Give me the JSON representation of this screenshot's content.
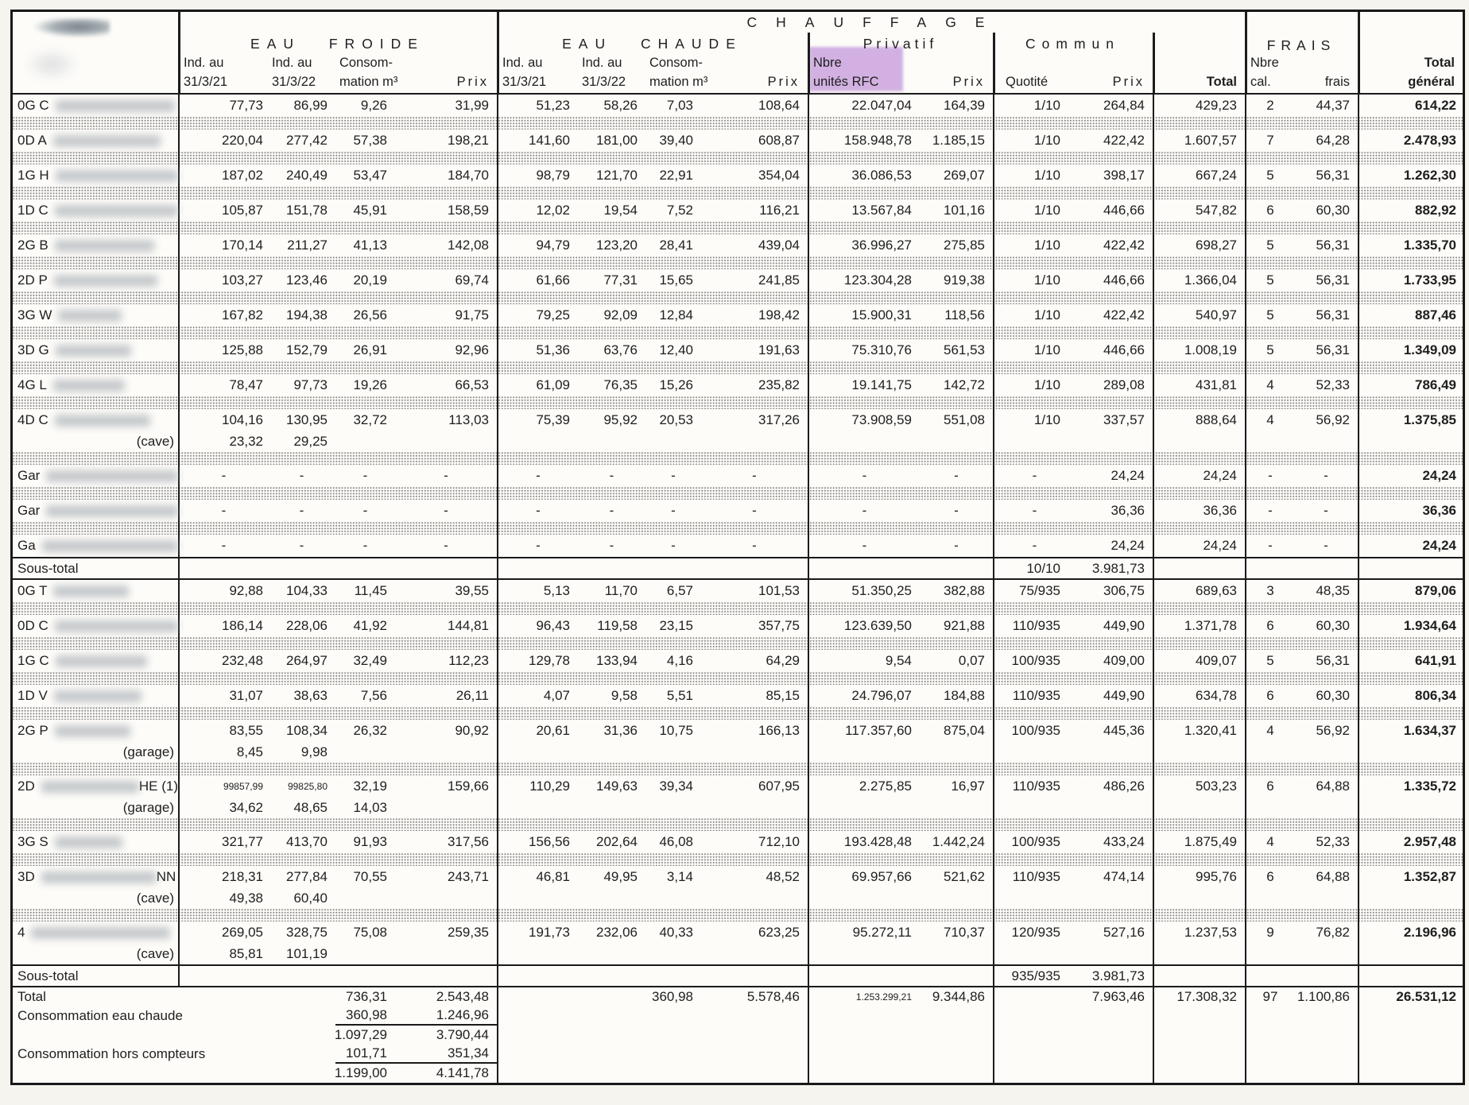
{
  "colors": {
    "highlight": "#d2b1e2",
    "paper": "#f6f4ef",
    "ink": "#1e1e1e"
  },
  "table": {
    "col_ids": [
      "name",
      "ef-ind-21",
      "ef-ind-22",
      "ef-conso",
      "ef-prix",
      "ec-ind-21",
      "ec-ind-22",
      "ec-conso",
      "ec-prix",
      "ch-nbre-unites-rfc",
      "ch-prix-privatif",
      "ch-quotite",
      "ch-prix-commun",
      "total",
      "frais-nbre-cal",
      "frais-montant",
      "total-general"
    ],
    "header": {
      "titles": {
        "chauffage": "CHAUFFAGE",
        "eau_froide": "EAU FROIDE",
        "eau_chaude": "EAU CHAUDE",
        "privatif": "Privatif",
        "commun": "Commun",
        "frais": "FRAIS"
      },
      "cols": [
        {},
        {
          "l1": "Ind. au",
          "l2": "31/3/21"
        },
        {
          "l1": "Ind. au",
          "l2": "31/3/22"
        },
        {
          "l1": "Consom-",
          "l2": "mation m³"
        },
        {
          "l2": "Prix",
          "align": "right",
          "sp": true
        },
        {
          "l1": "Ind. au",
          "l2": "31/3/21"
        },
        {
          "l1": "Ind. au",
          "l2": "31/3/22"
        },
        {
          "l1": "Consom-",
          "l2": "mation m³"
        },
        {
          "l2": "Prix",
          "align": "right",
          "sp": true
        },
        {
          "l1": "Nbre",
          "l2": "unités RFC"
        },
        {
          "l2": "Prix",
          "align": "right",
          "sp": true
        },
        {
          "l2": "Quotité"
        },
        {
          "l2": "Prix",
          "align": "right",
          "sp": true
        },
        {
          "l2": "Total",
          "align": "right",
          "bold": true
        },
        {
          "l1": "Nbre",
          "l2": "cal."
        },
        {
          "l2": "frais",
          "align": "right"
        },
        {
          "l1": "Total",
          "l2": "général",
          "align": "right",
          "bold": true
        }
      ]
    },
    "body": [
      {
        "t": "d",
        "label": "0G C",
        "blur": 150,
        "v": [
          "77,73",
          "86,99",
          "9,26",
          "31,99",
          "51,23",
          "58,26",
          "7,03",
          "108,64",
          "22.047,04",
          "164,39",
          "1/10",
          "264,84",
          "429,23",
          "2",
          "44,37",
          "614,22"
        ]
      },
      {
        "t": "d",
        "label": "0D A",
        "blur": 135,
        "v": [
          "220,04",
          "277,42",
          "57,38",
          "198,21",
          "141,60",
          "181,00",
          "39,40",
          "608,87",
          "158.948,78",
          "1.185,15",
          "1/10",
          "422,42",
          "1.607,57",
          "7",
          "64,28",
          "2.478,93"
        ]
      },
      {
        "t": "d",
        "label": "1G H",
        "blur": 185,
        "v": [
          "187,02",
          "240,49",
          "53,47",
          "184,70",
          "98,79",
          "121,70",
          "22,91",
          "354,04",
          "36.086,53",
          "269,07",
          "1/10",
          "398,17",
          "667,24",
          "5",
          "56,31",
          "1.262,30"
        ]
      },
      {
        "t": "d",
        "label": "1D C",
        "blur": 165,
        "v": [
          "105,87",
          "151,78",
          "45,91",
          "158,59",
          "12,02",
          "19,54",
          "7,52",
          "116,21",
          "13.567,84",
          "101,16",
          "1/10",
          "446,66",
          "547,82",
          "6",
          "60,30",
          "882,92"
        ]
      },
      {
        "t": "d",
        "label": "2G B",
        "blur": 125,
        "v": [
          "170,14",
          "211,27",
          "41,13",
          "142,08",
          "94,79",
          "123,20",
          "28,41",
          "439,04",
          "36.996,27",
          "275,85",
          "1/10",
          "422,42",
          "698,27",
          "5",
          "56,31",
          "1.335,70"
        ]
      },
      {
        "t": "d",
        "label": "2D P",
        "blur": 130,
        "v": [
          "103,27",
          "123,46",
          "20,19",
          "69,74",
          "61,66",
          "77,31",
          "15,65",
          "241,85",
          "123.304,28",
          "919,38",
          "1/10",
          "446,66",
          "1.366,04",
          "5",
          "56,31",
          "1.733,95"
        ]
      },
      {
        "t": "d",
        "label": "3G W",
        "blur": 80,
        "v": [
          "167,82",
          "194,38",
          "26,56",
          "91,75",
          "79,25",
          "92,09",
          "12,84",
          "198,42",
          "15.900,31",
          "118,56",
          "1/10",
          "422,42",
          "540,97",
          "5",
          "56,31",
          "887,46"
        ]
      },
      {
        "t": "d",
        "label": "3D G",
        "blur": 95,
        "v": [
          "125,88",
          "152,79",
          "26,91",
          "92,96",
          "51,36",
          "63,76",
          "12,40",
          "191,63",
          "75.310,76",
          "561,53",
          "1/10",
          "446,66",
          "1.008,19",
          "5",
          "56,31",
          "1.349,09"
        ]
      },
      {
        "t": "d",
        "label": "4G L",
        "blur": 90,
        "v": [
          "78,47",
          "97,73",
          "19,26",
          "66,53",
          "61,09",
          "76,35",
          "15,26",
          "235,82",
          "19.141,75",
          "142,72",
          "1/10",
          "289,08",
          "431,81",
          "4",
          "52,33",
          "786,49"
        ]
      },
      {
        "t": "d",
        "label": "4D C",
        "blur": 120,
        "sub": {
          "label": "(cave)",
          "v": [
            "23,32",
            "29,25",
            ""
          ]
        },
        "v": [
          "104,16",
          "130,95",
          "32,72",
          "113,03",
          "75,39",
          "95,92",
          "20,53",
          "317,26",
          "73.908,59",
          "551,08",
          "1/10",
          "337,57",
          "888,64",
          "4",
          "56,92",
          "1.375,85"
        ]
      },
      {
        "t": "d",
        "label": "Gar",
        "blur": 170,
        "v": [
          "-",
          "-",
          "-",
          "-",
          "-",
          "-",
          "-",
          "-",
          "-",
          "-",
          "-",
          "24,24",
          "24,24",
          "-",
          "-",
          "24,24"
        ]
      },
      {
        "t": "d",
        "label": "Gar",
        "blur": 185,
        "v": [
          "-",
          "-",
          "-",
          "-",
          "-",
          "-",
          "-",
          "-",
          "-",
          "-",
          "-",
          "36,36",
          "36,36",
          "-",
          "-",
          "36,36"
        ]
      },
      {
        "t": "d",
        "label": "Ga",
        "blur": 175,
        "v": [
          "-",
          "-",
          "-",
          "-",
          "-",
          "-",
          "-",
          "-",
          "-",
          "-",
          "-",
          "24,24",
          "24,24",
          "-",
          "-",
          "24,24"
        ]
      },
      {
        "t": "st",
        "label": "Sous-total",
        "v": [
          "",
          "",
          "",
          "",
          "",
          "",
          "",
          "",
          "",
          "",
          "10/10",
          "3.981,73",
          "",
          "",
          "",
          ""
        ]
      },
      {
        "t": "d",
        "label": "0G T",
        "blur": 95,
        "v": [
          "92,88",
          "104,33",
          "11,45",
          "39,55",
          "5,13",
          "11,70",
          "6,57",
          "101,53",
          "51.350,25",
          "382,88",
          "75/935",
          "306,75",
          "689,63",
          "3",
          "48,35",
          "879,06"
        ]
      },
      {
        "t": "d",
        "label": "0D C",
        "blur": 215,
        "v": [
          "186,14",
          "228,06",
          "41,92",
          "144,81",
          "96,43",
          "119,58",
          "23,15",
          "357,75",
          "123.639,50",
          "921,88",
          "110/935",
          "449,90",
          "1.371,78",
          "6",
          "60,30",
          "1.934,64"
        ]
      },
      {
        "t": "d",
        "label": "1G C",
        "blur": 115,
        "v": [
          "232,48",
          "264,97",
          "32,49",
          "112,23",
          "129,78",
          "133,94",
          "4,16",
          "64,29",
          "9,54",
          "0,07",
          "100/935",
          "409,00",
          "409,07",
          "5",
          "56,31",
          "641,91"
        ]
      },
      {
        "t": "d",
        "label": "1D V",
        "blur": 110,
        "v": [
          "31,07",
          "38,63",
          "7,56",
          "26,11",
          "4,07",
          "9,58",
          "5,51",
          "85,15",
          "24.796,07",
          "184,88",
          "110/935",
          "449,90",
          "634,78",
          "6",
          "60,30",
          "806,34"
        ]
      },
      {
        "t": "d",
        "label": "2G P",
        "blur": 95,
        "sub": {
          "label": "(garage)",
          "v": [
            "8,45",
            "9,98",
            ""
          ]
        },
        "v": [
          "83,55",
          "108,34",
          "26,32",
          "90,92",
          "20,61",
          "31,36",
          "10,75",
          "166,13",
          "117.357,60",
          "875,04",
          "100/935",
          "445,36",
          "1.320,41",
          "4",
          "56,92",
          "1.634,37"
        ]
      },
      {
        "t": "d",
        "label": "2D",
        "blur": 150,
        "suffix": "HE (1)",
        "sm": [
          0,
          1
        ],
        "sub": {
          "label": "(garage)",
          "v": [
            "34,62",
            "48,65",
            "14,03"
          ]
        },
        "v": [
          "99857,99",
          "99825,80",
          "32,19",
          "159,66",
          "110,29",
          "149,63",
          "39,34",
          "607,95",
          "2.275,85",
          "16,97",
          "110/935",
          "486,26",
          "503,23",
          "6",
          "64,88",
          "1.335,72"
        ]
      },
      {
        "t": "d",
        "label": "3G S",
        "blur": 85,
        "v": [
          "321,77",
          "413,70",
          "91,93",
          "317,56",
          "156,56",
          "202,64",
          "46,08",
          "712,10",
          "193.428,48",
          "1.442,24",
          "100/935",
          "433,24",
          "1.875,49",
          "4",
          "52,33",
          "2.957,48"
        ]
      },
      {
        "t": "d",
        "label": "3D",
        "blur": 145,
        "suffix": "NN",
        "sub": {
          "label": "(cave)",
          "v": [
            "49,38",
            "60,40",
            ""
          ]
        },
        "v": [
          "218,31",
          "277,84",
          "70,55",
          "243,71",
          "46,81",
          "49,95",
          "3,14",
          "48,52",
          "69.957,66",
          "521,62",
          "110/935",
          "474,14",
          "995,76",
          "6",
          "64,88",
          "1.352,87"
        ]
      },
      {
        "t": "d",
        "label": "4",
        "blur": 175,
        "sub": {
          "label": "(cave)",
          "v": [
            "85,81",
            "101,19",
            ""
          ]
        },
        "v": [
          "269,05",
          "328,75",
          "75,08",
          "259,35",
          "191,73",
          "232,06",
          "40,33",
          "623,25",
          "95.272,11",
          "710,37",
          "120/935",
          "527,16",
          "1.237,53",
          "9",
          "76,82",
          "2.196,96"
        ]
      },
      {
        "t": "st",
        "label": "Sous-total",
        "v": [
          "",
          "",
          "",
          "",
          "",
          "",
          "",
          "",
          "",
          "",
          "935/935",
          "3.981,73",
          "",
          "",
          "",
          ""
        ]
      },
      {
        "t": "bot",
        "label": "Total",
        "sm": [
          8
        ],
        "v": [
          "",
          "",
          "736,31",
          "2.543,48",
          "",
          "",
          "360,98",
          "5.578,46",
          "1.253.299,21",
          "9.344,86",
          "",
          "7.963,46",
          "17.308,32",
          "97",
          "1.100,86",
          "26.531,12"
        ]
      },
      {
        "t": "bot",
        "label": "Consommation eau chaude",
        "ul": true,
        "v": [
          "",
          "",
          "360,98",
          "1.246,96",
          "",
          "",
          "",
          "",
          "",
          "",
          "",
          "",
          "",
          "",
          "",
          ""
        ]
      },
      {
        "t": "bot",
        "label": "",
        "v": [
          "",
          "",
          "1.097,29",
          "3.790,44",
          "",
          "",
          "",
          "",
          "",
          "",
          "",
          "",
          "",
          "",
          "",
          ""
        ]
      },
      {
        "t": "bot",
        "label": "Consommation hors compteurs",
        "ul": true,
        "v": [
          "",
          "",
          "101,71",
          "351,34",
          "",
          "",
          "",
          "",
          "",
          "",
          "",
          "",
          "",
          "",
          "",
          ""
        ]
      },
      {
        "t": "bot",
        "label": "",
        "v": [
          "",
          "",
          "1.199,00",
          "4.141,78",
          "",
          "",
          "",
          "",
          "",
          "",
          "",
          "",
          "",
          "",
          "",
          ""
        ]
      }
    ]
  }
}
